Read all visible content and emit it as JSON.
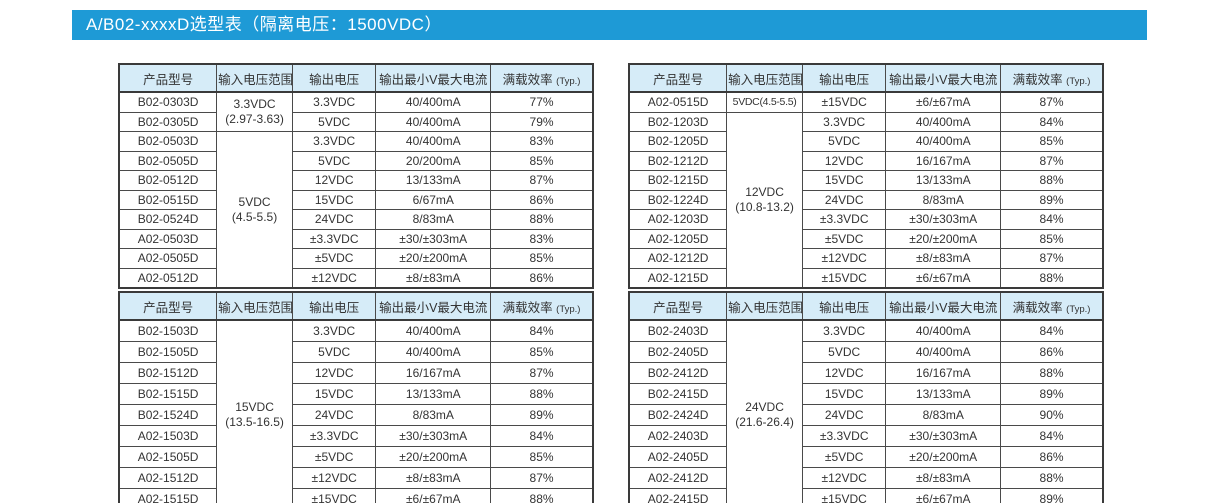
{
  "page": {
    "title": "A/B02-xxxxD选型表（隔离电压：1500VDC）"
  },
  "colors": {
    "title_bar_bg": "#1e9ad6",
    "title_text": "#ffffff",
    "header_row_bg": "#d6ecf8",
    "table_border": "#3a3a3a",
    "cell_text": "#333333"
  },
  "table_headers": {
    "col1": "产品型号",
    "col2": "输入电压范围",
    "col3": "输出电压",
    "col4": "输出最小V最大电流",
    "col5": "满载效率",
    "col5_suffix": "(Typ.)"
  },
  "tables": [
    {
      "rows": [
        {
          "model": "B02-0303D",
          "vin": {
            "lines": [
              "3.3VDC",
              "(2.97-3.63)"
            ],
            "span": 2
          },
          "vout": "3.3VDC",
          "current": "40/400mA",
          "eff": "77%"
        },
        {
          "model": "B02-0305D",
          "vout": "5VDC",
          "current": "40/400mA",
          "eff": "79%"
        },
        {
          "model": "B02-0503D",
          "vin": {
            "lines": [
              "5VDC",
              "(4.5-5.5)"
            ],
            "span": 8
          },
          "vout": "3.3VDC",
          "current": "40/400mA",
          "eff": "83%"
        },
        {
          "model": "B02-0505D",
          "vout": "5VDC",
          "current": "20/200mA",
          "eff": "85%"
        },
        {
          "model": "B02-0512D",
          "vout": "12VDC",
          "current": "13/133mA",
          "eff": "87%"
        },
        {
          "model": "B02-0515D",
          "vout": "15VDC",
          "current": "6/67mA",
          "eff": "86%"
        },
        {
          "model": "B02-0524D",
          "vout": "24VDC",
          "current": "8/83mA",
          "eff": "88%"
        },
        {
          "model": "A02-0503D",
          "vout": "±3.3VDC",
          "current": "±30/±303mA",
          "eff": "83%"
        },
        {
          "model": "A02-0505D",
          "vout": "±5VDC",
          "current": "±20/±200mA",
          "eff": "85%"
        },
        {
          "model": "A02-0512D",
          "vout": "±12VDC",
          "current": "±8/±83mA",
          "eff": "86%"
        }
      ]
    },
    {
      "rows": [
        {
          "model": "A02-0515D",
          "vin": {
            "lines": [
              "5VDC(4.5-5.5)"
            ],
            "span": 1
          },
          "vout": "±15VDC",
          "current": "±6/±67mA",
          "eff": "87%"
        },
        {
          "model": "B02-1203D",
          "vin": {
            "lines": [
              "12VDC",
              "(10.8-13.2)"
            ],
            "span": 9
          },
          "vout": "3.3VDC",
          "current": "40/400mA",
          "eff": "84%"
        },
        {
          "model": "B02-1205D",
          "vout": "5VDC",
          "current": "40/400mA",
          "eff": "85%"
        },
        {
          "model": "B02-1212D",
          "vout": "12VDC",
          "current": "16/167mA",
          "eff": "87%"
        },
        {
          "model": "B02-1215D",
          "vout": "15VDC",
          "current": "13/133mA",
          "eff": "88%"
        },
        {
          "model": "B02-1224D",
          "vout": "24VDC",
          "current": "8/83mA",
          "eff": "89%"
        },
        {
          "model": "A02-1203D",
          "vout": "±3.3VDC",
          "current": "±30/±303mA",
          "eff": "84%"
        },
        {
          "model": "A02-1205D",
          "vout": "±5VDC",
          "current": "±20/±200mA",
          "eff": "85%"
        },
        {
          "model": "A02-1212D",
          "vout": "±12VDC",
          "current": "±8/±83mA",
          "eff": "87%"
        },
        {
          "model": "A02-1215D",
          "vout": "±15VDC",
          "current": "±6/±67mA",
          "eff": "88%"
        }
      ]
    },
    {
      "rows": [
        {
          "model": "B02-1503D",
          "vin": {
            "lines": [
              "15VDC",
              "(13.5-16.5)"
            ],
            "span": 9
          },
          "vout": "3.3VDC",
          "current": "40/400mA",
          "eff": "84%"
        },
        {
          "model": "B02-1505D",
          "vout": "5VDC",
          "current": "40/400mA",
          "eff": "85%"
        },
        {
          "model": "B02-1512D",
          "vout": "12VDC",
          "current": "16/167mA",
          "eff": "87%"
        },
        {
          "model": "B02-1515D",
          "vout": "15VDC",
          "current": "13/133mA",
          "eff": "88%"
        },
        {
          "model": "B02-1524D",
          "vout": "24VDC",
          "current": "8/83mA",
          "eff": "89%"
        },
        {
          "model": "A02-1503D",
          "vout": "±3.3VDC",
          "current": "±30/±303mA",
          "eff": "84%"
        },
        {
          "model": "A02-1505D",
          "vout": "±5VDC",
          "current": "±20/±200mA",
          "eff": "85%"
        },
        {
          "model": "A02-1512D",
          "vout": "±12VDC",
          "current": "±8/±83mA",
          "eff": "87%"
        },
        {
          "model": "A02-1515D",
          "vout": "±15VDC",
          "current": "±6/±67mA",
          "eff": "88%"
        }
      ]
    },
    {
      "rows": [
        {
          "model": "B02-2403D",
          "vin": {
            "lines": [
              "24VDC",
              "(21.6-26.4)"
            ],
            "span": 9
          },
          "vout": "3.3VDC",
          "current": "40/400mA",
          "eff": "84%"
        },
        {
          "model": "B02-2405D",
          "vout": "5VDC",
          "current": "40/400mA",
          "eff": "86%"
        },
        {
          "model": "B02-2412D",
          "vout": "12VDC",
          "current": "16/167mA",
          "eff": "88%"
        },
        {
          "model": "B02-2415D",
          "vout": "15VDC",
          "current": "13/133mA",
          "eff": "89%"
        },
        {
          "model": "B02-2424D",
          "vout": "24VDC",
          "current": "8/83mA",
          "eff": "90%"
        },
        {
          "model": "A02-2403D",
          "vout": "±3.3VDC",
          "current": "±30/±303mA",
          "eff": "84%"
        },
        {
          "model": "A02-2405D",
          "vout": "±5VDC",
          "current": "±20/±200mA",
          "eff": "86%"
        },
        {
          "model": "A02-2412D",
          "vout": "±12VDC",
          "current": "±8/±83mA",
          "eff": "88%"
        },
        {
          "model": "A02-2415D",
          "vout": "±15VDC",
          "current": "±6/±67mA",
          "eff": "89%"
        }
      ]
    }
  ]
}
